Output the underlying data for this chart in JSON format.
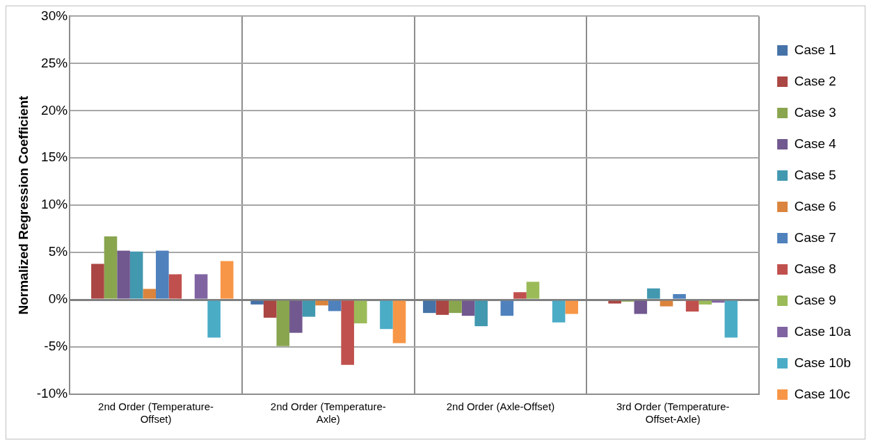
{
  "chart_data": {
    "type": "bar",
    "ylabel": "Normalized Regression Coefficient",
    "categories": [
      "2nd Order (Temperature-Offset)",
      "2nd Order (Temperature-Axle)",
      "2nd Order (Axle-Offset)",
      "3rd Order (Temperature-Offset-Axle)"
    ],
    "series": [
      {
        "name": "Case 1",
        "color": "#4572a7",
        "values": [
          null,
          -0.5,
          -1.4,
          0
        ]
      },
      {
        "name": "Case 2",
        "color": "#aa4643",
        "values": [
          3.8,
          -1.9,
          -1.6,
          -0.4
        ]
      },
      {
        "name": "Case 3",
        "color": "#89a54e",
        "values": [
          6.7,
          -4.9,
          -1.4,
          -0.2
        ]
      },
      {
        "name": "Case 4",
        "color": "#71588f",
        "values": [
          5.2,
          -3.5,
          -1.7,
          -1.5
        ]
      },
      {
        "name": "Case 5",
        "color": "#4198af",
        "values": [
          5.1,
          -1.8,
          -2.8,
          1.2
        ]
      },
      {
        "name": "Case 6",
        "color": "#db843d",
        "values": [
          1.15,
          -0.6,
          0,
          -0.7
        ]
      },
      {
        "name": "Case 7",
        "color": "#4f81bd",
        "values": [
          5.2,
          -1.2,
          -1.7,
          0.6
        ]
      },
      {
        "name": "Case 8",
        "color": "#c0504d",
        "values": [
          2.7,
          -6.9,
          0.8,
          -1.25
        ]
      },
      {
        "name": "Case 9",
        "color": "#9bbb59",
        "values": [
          0,
          -2.5,
          1.9,
          -0.5
        ]
      },
      {
        "name": "Case 10a",
        "color": "#8064a2",
        "values": [
          2.7,
          0,
          0,
          -0.3
        ]
      },
      {
        "name": "Case 10b",
        "color": "#4bacc6",
        "values": [
          -4.0,
          -3.1,
          -2.4,
          -4.0
        ]
      },
      {
        "name": "Case 10c",
        "color": "#f79646",
        "values": [
          4.1,
          -4.6,
          -1.5,
          null
        ]
      }
    ],
    "ylim": [
      -10,
      30
    ],
    "yticks": [
      {
        "value": -10,
        "label": "-10%"
      },
      {
        "value": -5,
        "label": "-5%"
      },
      {
        "value": 0,
        "label": "0%"
      },
      {
        "value": 5,
        "label": "5%"
      },
      {
        "value": 10,
        "label": "10%"
      },
      {
        "value": 15,
        "label": "15%"
      },
      {
        "value": 20,
        "label": "20%"
      },
      {
        "value": 25,
        "label": "25%"
      },
      {
        "value": 30,
        "label": "30%"
      }
    ],
    "grid": true,
    "legend": "right"
  }
}
